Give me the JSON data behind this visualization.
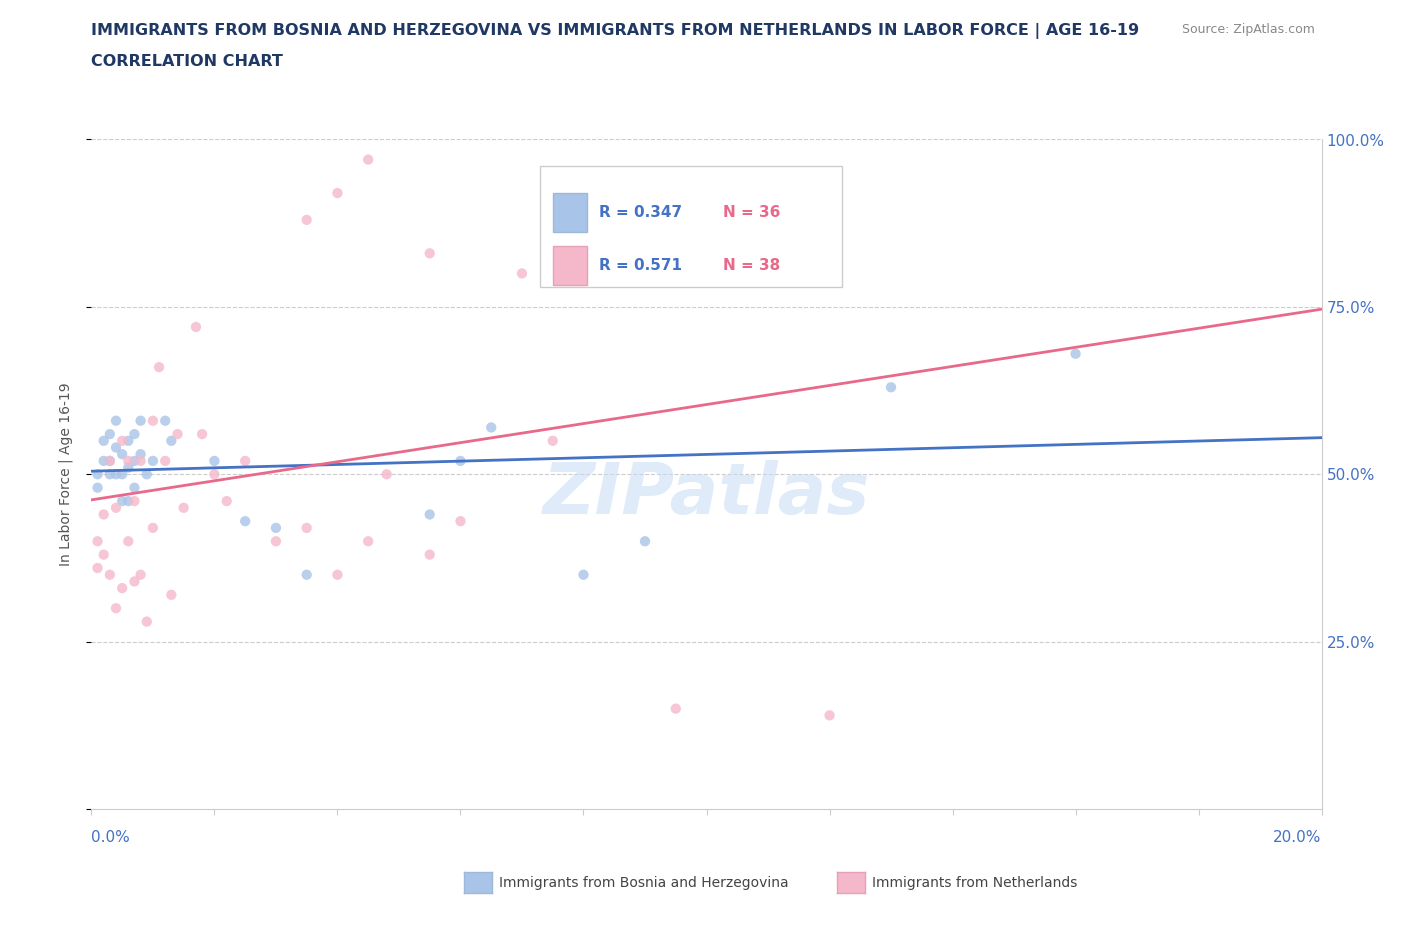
{
  "title": "IMMIGRANTS FROM BOSNIA AND HERZEGOVINA VS IMMIGRANTS FROM NETHERLANDS IN LABOR FORCE | AGE 16-19",
  "subtitle": "CORRELATION CHART",
  "source": "Source: ZipAtlas.com",
  "xlabel_bottom_left": "0.0%",
  "xlabel_bottom_right": "20.0%",
  "ylabel": "In Labor Force | Age 16-19",
  "xmin": 0.0,
  "xmax": 0.2,
  "ymin": 0.0,
  "ymax": 1.0,
  "yticks": [
    0.0,
    0.25,
    0.5,
    0.75,
    1.0
  ],
  "ytick_labels": [
    "",
    "25.0%",
    "50.0%",
    "75.0%",
    "100.0%"
  ],
  "watermark": "ZIPatlas",
  "legend_r1": "R = 0.347",
  "legend_n1": "N = 36",
  "legend_r2": "R = 0.571",
  "legend_n2": "N = 38",
  "color_bosnia": "#A8C4E8",
  "color_netherlands": "#F5B8CB",
  "color_bosnia_line": "#4472C4",
  "color_netherlands_line": "#E8698A",
  "color_title": "#1F3864",
  "color_r_label": "#4472C4",
  "color_n_label": "#E8698A",
  "color_source": "#888888",
  "color_ylabel": "#555555",
  "color_axis_blue": "#4472C4",
  "bosnia_x": [
    0.001,
    0.001,
    0.002,
    0.002,
    0.003,
    0.003,
    0.003,
    0.004,
    0.004,
    0.004,
    0.005,
    0.005,
    0.005,
    0.006,
    0.006,
    0.006,
    0.007,
    0.007,
    0.007,
    0.008,
    0.008,
    0.009,
    0.01,
    0.012,
    0.013,
    0.02,
    0.025,
    0.03,
    0.035,
    0.055,
    0.06,
    0.065,
    0.08,
    0.09,
    0.13,
    0.16
  ],
  "bosnia_y": [
    0.48,
    0.5,
    0.52,
    0.55,
    0.5,
    0.52,
    0.56,
    0.5,
    0.54,
    0.58,
    0.46,
    0.5,
    0.53,
    0.46,
    0.51,
    0.55,
    0.48,
    0.52,
    0.56,
    0.53,
    0.58,
    0.5,
    0.52,
    0.58,
    0.55,
    0.52,
    0.43,
    0.42,
    0.35,
    0.44,
    0.52,
    0.57,
    0.35,
    0.4,
    0.63,
    0.68
  ],
  "netherlands_x": [
    0.001,
    0.001,
    0.002,
    0.002,
    0.003,
    0.003,
    0.004,
    0.004,
    0.005,
    0.005,
    0.006,
    0.006,
    0.007,
    0.007,
    0.008,
    0.008,
    0.009,
    0.01,
    0.01,
    0.011,
    0.012,
    0.013,
    0.014,
    0.015,
    0.017,
    0.018,
    0.02,
    0.022,
    0.025,
    0.03,
    0.035,
    0.04,
    0.045,
    0.048,
    0.055,
    0.06,
    0.075,
    0.095
  ],
  "netherlands_y": [
    0.36,
    0.4,
    0.38,
    0.44,
    0.35,
    0.52,
    0.3,
    0.45,
    0.33,
    0.55,
    0.4,
    0.52,
    0.34,
    0.46,
    0.35,
    0.52,
    0.28,
    0.42,
    0.58,
    0.66,
    0.52,
    0.32,
    0.56,
    0.45,
    0.72,
    0.56,
    0.5,
    0.46,
    0.52,
    0.4,
    0.42,
    0.35,
    0.4,
    0.5,
    0.38,
    0.43,
    0.55,
    0.15
  ],
  "nl_outlier_x": [
    0.035,
    0.04,
    0.045,
    0.055,
    0.07,
    0.095,
    0.1,
    0.12
  ],
  "nl_outlier_y": [
    0.88,
    0.92,
    0.97,
    0.83,
    0.8,
    0.82,
    0.95,
    0.14
  ]
}
